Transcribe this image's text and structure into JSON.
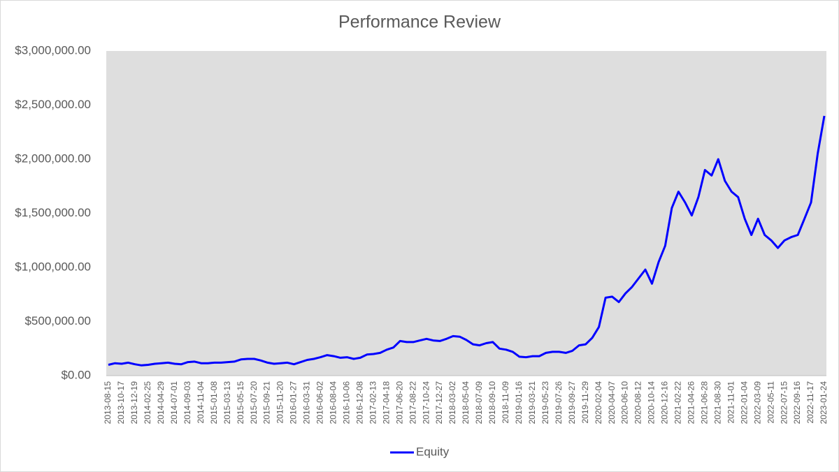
{
  "chart_data": {
    "type": "line",
    "title": "Performance Review",
    "categories": [
      "2013-08-15",
      null,
      "2013-10-17",
      null,
      "2013-12-19",
      null,
      "2014-02-25",
      null,
      "2014-04-29",
      null,
      "2014-07-01",
      null,
      "2014-09-03",
      null,
      "2014-11-04",
      null,
      "2015-01-08",
      null,
      "2015-03-13",
      null,
      "2015-05-15",
      null,
      "2015-07-20",
      null,
      "2015-09-21",
      null,
      "2015-11-20",
      null,
      "2016-01-27",
      null,
      "2016-03-31",
      null,
      "2016-06-02",
      null,
      "2016-08-04",
      null,
      "2016-10-06",
      null,
      "2016-12-08",
      null,
      "2017-02-13",
      null,
      "2017-04-18",
      null,
      "2017-06-20",
      null,
      "2017-08-22",
      null,
      "2017-10-24",
      null,
      "2017-12-27",
      null,
      "2018-03-02",
      null,
      "2018-05-04",
      null,
      "2018-07-09",
      null,
      "2018-09-10",
      null,
      "2018-11-09",
      null,
      "2019-01-16",
      null,
      "2019-03-21",
      null,
      "2019-05-23",
      null,
      "2019-07-26",
      null,
      "2019-09-27",
      null,
      "2019-11-29",
      null,
      "2020-02-04",
      null,
      "2020-04-07",
      null,
      "2020-06-10",
      null,
      "2020-08-12",
      null,
      "2020-10-14",
      null,
      "2020-12-16",
      null,
      "2021-02-22",
      null,
      "2021-04-26",
      null,
      "2021-06-28",
      null,
      "2021-08-30",
      null,
      "2021-11-01",
      null,
      "2022-01-04",
      null,
      "2022-03-09",
      null,
      "2022-05-11",
      null,
      "2022-07-15",
      null,
      "2022-09-16",
      null,
      "2022-11-17",
      null,
      "2023-01-24"
    ],
    "series": [
      {
        "name": "Equity",
        "color": "#0000ff",
        "values": [
          100000,
          115000,
          110000,
          120000,
          105000,
          95000,
          100000,
          110000,
          115000,
          120000,
          110000,
          105000,
          125000,
          130000,
          115000,
          115000,
          120000,
          120000,
          125000,
          130000,
          150000,
          155000,
          155000,
          140000,
          120000,
          110000,
          115000,
          120000,
          105000,
          125000,
          145000,
          155000,
          170000,
          190000,
          180000,
          165000,
          170000,
          155000,
          165000,
          195000,
          200000,
          210000,
          240000,
          260000,
          320000,
          310000,
          310000,
          325000,
          340000,
          325000,
          320000,
          340000,
          365000,
          360000,
          330000,
          290000,
          280000,
          300000,
          310000,
          250000,
          240000,
          220000,
          175000,
          170000,
          180000,
          180000,
          210000,
          220000,
          220000,
          210000,
          230000,
          280000,
          290000,
          350000,
          450000,
          720000,
          730000,
          680000,
          760000,
          820000,
          900000,
          980000,
          850000,
          1050000,
          1200000,
          1550000,
          1700000,
          1600000,
          1480000,
          1650000,
          1900000,
          1850000,
          2000000,
          1800000,
          1700000,
          1650000,
          1450000,
          1300000,
          1450000,
          1300000,
          1250000,
          1180000,
          1250000,
          1280000,
          1300000,
          1450000,
          1600000,
          2050000,
          2400000
        ]
      }
    ],
    "ylim": [
      0,
      3000000
    ],
    "yticks": [
      {
        "value": 0,
        "label": "$0.00"
      },
      {
        "value": 500000,
        "label": "$500,000.00"
      },
      {
        "value": 1000000,
        "label": "$1,000,000.00"
      },
      {
        "value": 1500000,
        "label": "$1,500,000.00"
      },
      {
        "value": 2000000,
        "label": "$2,000,000.00"
      },
      {
        "value": 2500000,
        "label": "$2,500,000.00"
      },
      {
        "value": 3000000,
        "label": "$3,000,000.00"
      }
    ],
    "legend": "bottom"
  }
}
